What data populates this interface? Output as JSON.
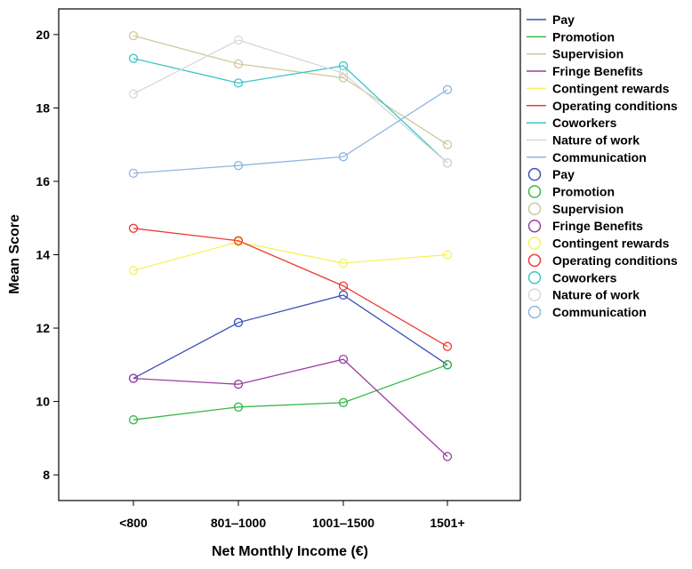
{
  "chart_data": {
    "type": "line",
    "title": "",
    "xlabel": "Net Monthly Income (€)",
    "ylabel": "Mean Score",
    "categories": [
      "<800",
      "801‒1000",
      "1001‒1500",
      "1501+"
    ],
    "ylim": [
      7.3,
      20.7
    ],
    "yticks": [
      8,
      10,
      12,
      14,
      16,
      18,
      20
    ],
    "grid": false,
    "legend_position": "right",
    "series": [
      {
        "name": "Pay",
        "color": "#3b4fb8",
        "values": [
          10.63,
          12.15,
          12.9,
          11.0
        ]
      },
      {
        "name": "Promotion",
        "color": "#37b84a",
        "values": [
          9.5,
          9.85,
          9.97,
          11.0
        ]
      },
      {
        "name": "Supervision",
        "color": "#cfc99a",
        "values": [
          19.97,
          19.2,
          18.82,
          17.0
        ]
      },
      {
        "name": "Fringe Benefits",
        "color": "#9a3fa0",
        "values": [
          10.63,
          10.47,
          11.15,
          8.5
        ]
      },
      {
        "name": "Contingent rewards",
        "color": "#f4f35a",
        "values": [
          13.57,
          14.35,
          13.77,
          14.0
        ]
      },
      {
        "name": "Operating conditions",
        "color": "#ef3b35",
        "values": [
          14.72,
          14.38,
          13.15,
          11.5
        ]
      },
      {
        "name": "Coworkers",
        "color": "#3cc6c6",
        "values": [
          19.35,
          18.68,
          19.15,
          16.5
        ]
      },
      {
        "name": "Nature of work",
        "color": "#d8d8d8",
        "values": [
          18.38,
          19.85,
          18.95,
          16.5
        ]
      },
      {
        "name": "Communication",
        "color": "#8fb6e0",
        "values": [
          16.22,
          16.43,
          16.67,
          18.5
        ]
      }
    ]
  }
}
